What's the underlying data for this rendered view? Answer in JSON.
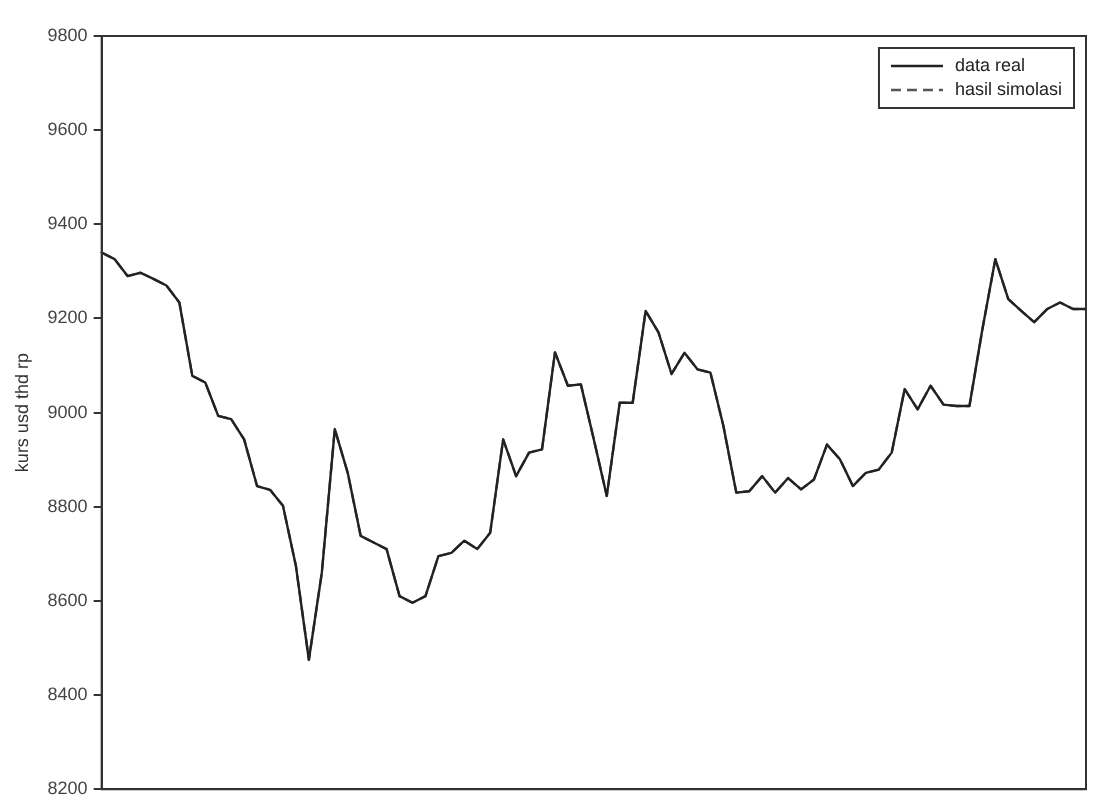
{
  "chart_data": {
    "type": "line",
    "ylabel": "kurs usd thd rp",
    "categories": [
      null,
      null,
      null,
      null,
      null,
      null,
      null,
      null,
      null,
      null,
      null,
      null,
      null,
      null,
      null,
      null,
      null,
      null,
      null,
      null,
      null,
      null,
      null,
      null,
      null,
      null,
      null,
      null,
      null,
      null,
      null,
      null,
      null,
      null,
      null,
      null,
      null,
      null,
      null,
      null,
      null,
      null,
      null,
      null,
      null,
      null,
      null,
      null,
      null,
      null,
      null,
      null,
      null,
      null,
      null,
      null,
      null,
      null,
      null,
      null,
      null,
      null,
      null,
      null,
      null,
      null,
      null,
      null,
      null,
      null,
      null,
      null,
      null,
      null,
      null,
      null,
      null
    ],
    "series": [
      {
        "name": "data real",
        "color": "#222222",
        "line_style": "solid",
        "values": [
          9340,
          9326,
          9290,
          9297,
          9284,
          9270,
          9234,
          9078,
          9064,
          8993,
          8986,
          8943,
          8844,
          8836,
          8802,
          8674,
          8475,
          8660,
          8965,
          8872,
          8738,
          8724,
          8710,
          8610,
          8596,
          8610,
          8695,
          8702,
          8728,
          8710,
          8745,
          8943,
          8865,
          8915,
          8922,
          9128,
          9057,
          9060,
          8943,
          8823,
          9021,
          9021,
          9216,
          9170,
          9082,
          9127,
          9092,
          9085,
          8972,
          8830,
          8833,
          8865,
          8830,
          8861,
          8837,
          8858,
          8932,
          8901,
          8844,
          8872,
          8879,
          8915,
          9050,
          9007,
          9057,
          9017,
          9014,
          9014,
          9177,
          9326,
          9241,
          9216,
          9192,
          9220,
          9234,
          9220,
          9220
        ]
      },
      {
        "name": "hasil simolasi",
        "color": "#555555",
        "line_style": "dashed",
        "values": [
          9340,
          9326,
          9290,
          9297,
          9284,
          9270,
          9234,
          9078,
          9064,
          8993,
          8986,
          8943,
          8844,
          8836,
          8802,
          8674,
          8475,
          8660,
          8965,
          8872,
          8738,
          8724,
          8710,
          8610,
          8596,
          8610,
          8695,
          8702,
          8728,
          8710,
          8745,
          8943,
          8865,
          8915,
          8922,
          9128,
          9057,
          9060,
          8943,
          8823,
          9021,
          9021,
          9216,
          9170,
          9082,
          9127,
          9092,
          9085,
          8972,
          8830,
          8833,
          8865,
          8830,
          8861,
          8837,
          8858,
          8932,
          8901,
          8844,
          8872,
          8879,
          8915,
          9050,
          9007,
          9057,
          9017,
          9014,
          9014,
          9177,
          9326,
          9241,
          9216,
          9192,
          9220,
          9234,
          9220,
          9220
        ]
      }
    ],
    "ylim": [
      8200,
      9800
    ],
    "yticks": [
      8200,
      8400,
      8600,
      8800,
      9000,
      9200,
      9400,
      9600,
      9800
    ],
    "grid": false,
    "legend": "top right",
    "marker": "none",
    "tick_labels": "y"
  }
}
